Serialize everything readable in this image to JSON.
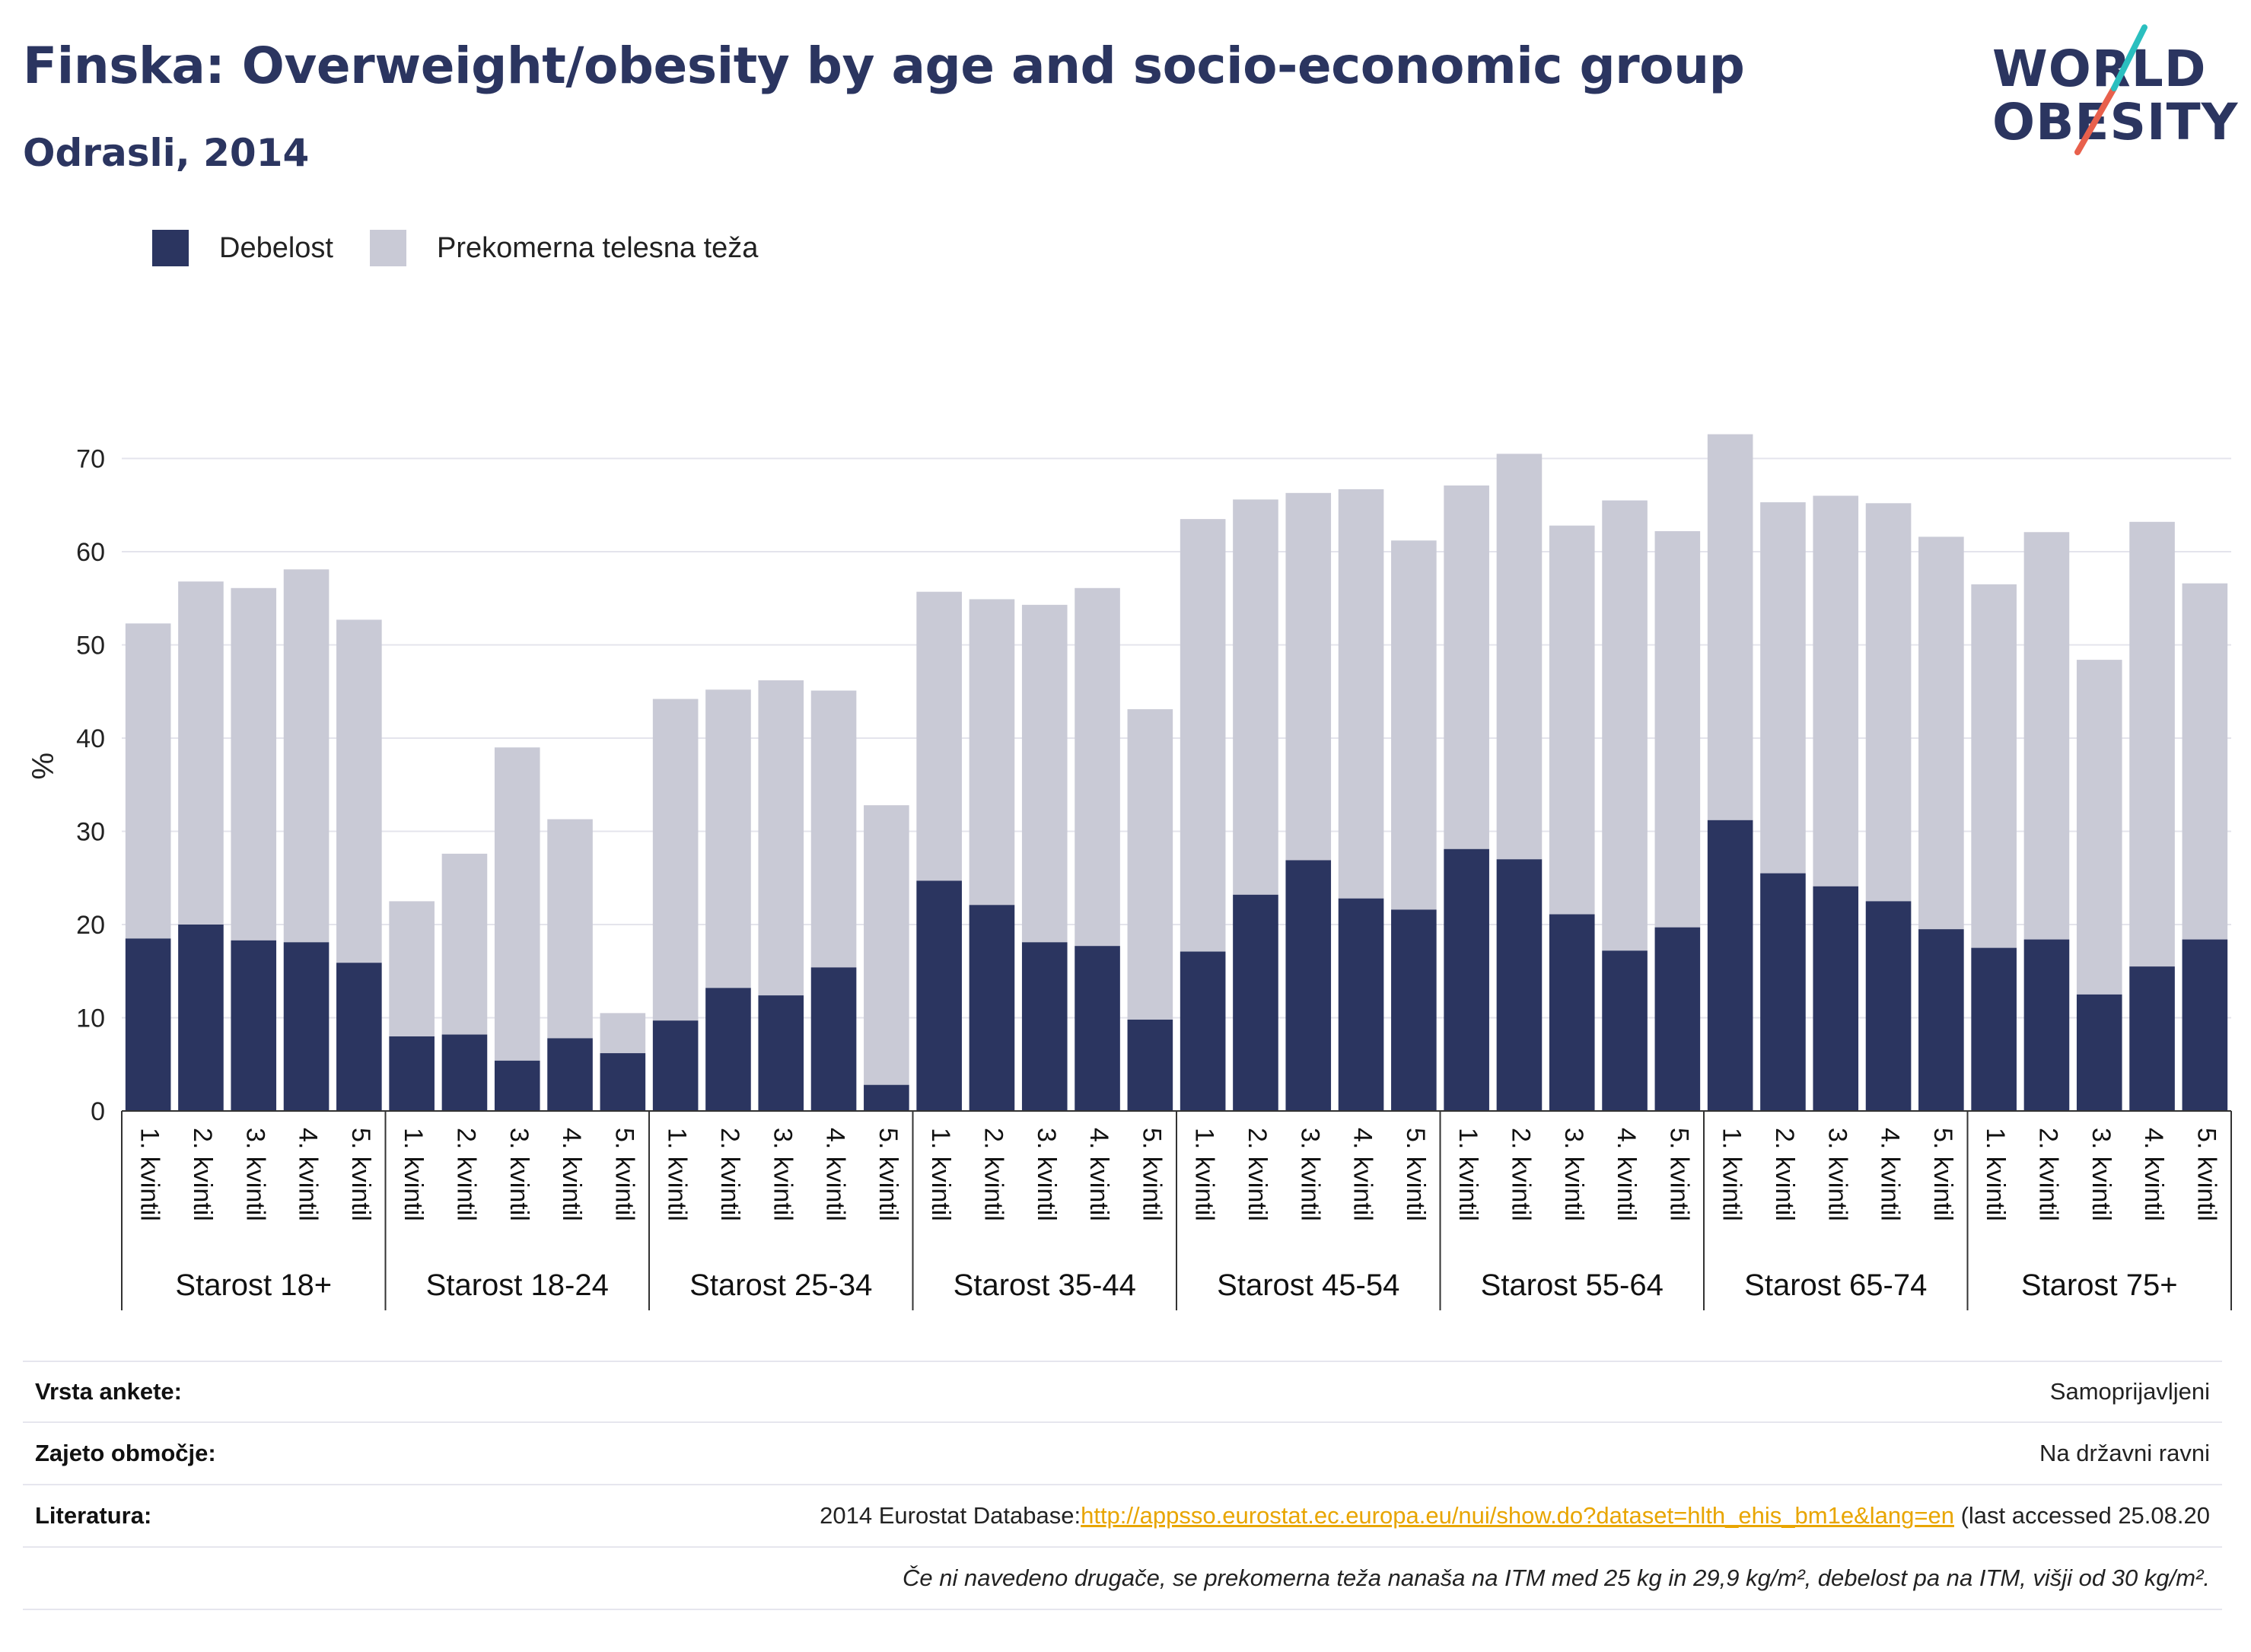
{
  "header": {
    "title": "Finska: Overweight/obesity by age and socio-economic group",
    "subtitle": "Odrasli, 2014"
  },
  "logo": {
    "line1": "WORLD",
    "line2": "OBESITY"
  },
  "colors": {
    "obesity": "#2b3560",
    "overweight": "#c9cad6",
    "title": "#2b3560",
    "accent_teal": "#2bbfbf",
    "accent_red": "#e8604c"
  },
  "legend": [
    {
      "label": "Debelost",
      "color": "#2b3560"
    },
    {
      "label": "Prekomerna telesna teža",
      "color": "#c9cad6"
    }
  ],
  "chart_data": {
    "type": "bar",
    "stacked": true,
    "ylabel": "%",
    "ylim": [
      0,
      80
    ],
    "yticks": [
      0,
      10,
      20,
      30,
      40,
      50,
      60,
      70
    ],
    "grid": true,
    "legend_position": "top-left",
    "groups": [
      {
        "label": "Starost 18+",
        "obesity": [
          18.5,
          20.0,
          18.3,
          18.1,
          15.9
        ],
        "total": [
          52.3,
          56.8,
          56.1,
          58.1,
          52.7
        ]
      },
      {
        "label": "Starost 18-24",
        "obesity": [
          8.0,
          8.2,
          5.4,
          7.8,
          6.2
        ],
        "total": [
          22.5,
          27.6,
          39.0,
          31.3,
          10.5
        ]
      },
      {
        "label": "Starost 25-34",
        "obesity": [
          9.7,
          13.2,
          12.4,
          15.4,
          2.8
        ],
        "total": [
          44.2,
          45.2,
          46.2,
          45.1,
          32.8
        ]
      },
      {
        "label": "Starost 35-44",
        "obesity": [
          24.7,
          22.1,
          18.1,
          17.7,
          9.8
        ],
        "total": [
          55.7,
          54.9,
          54.3,
          56.1,
          43.1
        ]
      },
      {
        "label": "Starost 45-54",
        "obesity": [
          17.1,
          23.2,
          26.9,
          22.8,
          21.6
        ],
        "total": [
          63.5,
          65.6,
          66.3,
          66.7,
          61.2
        ]
      },
      {
        "label": "Starost 55-64",
        "obesity": [
          28.1,
          27.0,
          21.1,
          17.2,
          19.7
        ],
        "total": [
          67.1,
          70.5,
          62.8,
          65.5,
          62.2
        ]
      },
      {
        "label": "Starost 65-74",
        "obesity": [
          31.2,
          25.5,
          24.1,
          22.5,
          19.5
        ],
        "total": [
          72.6,
          65.3,
          66.0,
          65.2,
          61.6
        ]
      },
      {
        "label": "Starost 75+",
        "obesity": [
          17.5,
          18.4,
          12.5,
          15.5,
          18.4
        ],
        "total": [
          56.5,
          62.1,
          48.4,
          63.2,
          56.6
        ]
      }
    ],
    "categories": [
      "1. kvintil",
      "2. kvintil",
      "3. kvintil",
      "4. kvintil",
      "5. kvintil"
    ],
    "series": [
      {
        "name": "Debelost"
      },
      {
        "name": "Prekomerna telesna teža"
      }
    ]
  },
  "footer": {
    "survey_label": "Vrsta ankete:",
    "survey_value": "Samoprijavljeni",
    "coverage_label": "Zajeto območje:",
    "coverage_value": "Na državni ravni",
    "references_label": "Literatura:",
    "references_prefix": "2014 Eurostat Database:",
    "references_link": "http://appsso.eurostat.ec.europa.eu/nui/show.do?dataset=hlth_ehis_bm1e&lang=en",
    "references_suffix": " (last accessed 25.08.20",
    "note": "Če ni navedeno drugače, se prekomerna teža nanaša na ITM med 25 kg in 29,9 kg/m², debelost pa na ITM, višji od 30 kg/m²."
  }
}
